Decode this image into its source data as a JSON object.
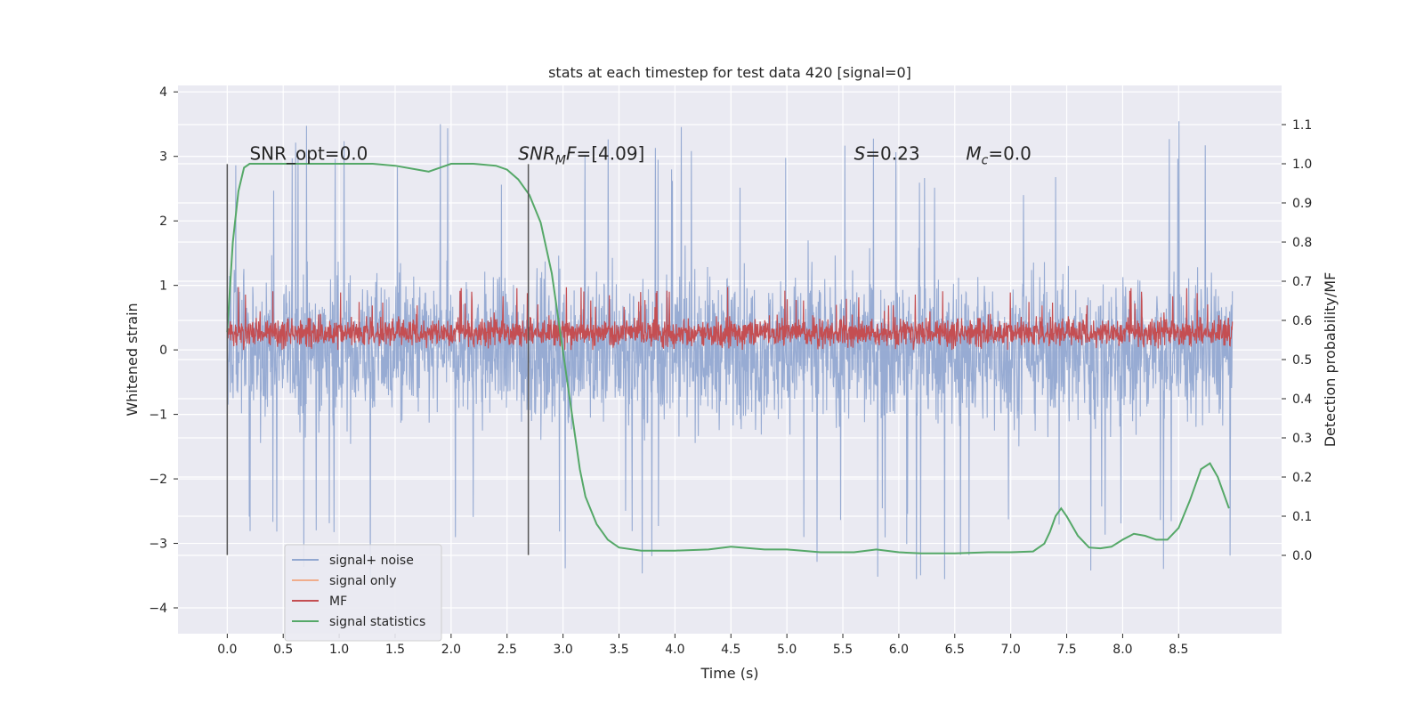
{
  "chart_data": {
    "type": "line",
    "title": "stats at each timestep for test data 420 [signal=0]",
    "xlabel": "Time (s)",
    "ylabel": "Whitened strain",
    "ylabel_right": "Detection probability/MF",
    "xlim": [
      -0.44,
      9.42
    ],
    "ylim": [
      -4.4,
      4.1
    ],
    "ylim_right": [
      -0.2,
      1.2
    ],
    "x_ticks": [
      "0.0",
      "0.5",
      "1.0",
      "1.5",
      "2.0",
      "2.5",
      "3.0",
      "3.5",
      "4.0",
      "4.5",
      "5.0",
      "5.5",
      "6.0",
      "6.5",
      "7.0",
      "7.5",
      "8.0",
      "8.5"
    ],
    "y_ticks": [
      "−4",
      "−3",
      "−2",
      "−1",
      "0",
      "1",
      "2",
      "3",
      "4"
    ],
    "y_ticks_right": [
      "0.0",
      "0.1",
      "0.2",
      "0.3",
      "0.4",
      "0.5",
      "0.6",
      "0.7",
      "0.8",
      "0.9",
      "1.0",
      "1.1"
    ],
    "grid": true,
    "legend_position": "lower-left",
    "annotations": [
      {
        "text": "SNR_opt=0.0",
        "x": 0.2,
        "y": 2.95
      },
      {
        "text": "SNR_MF=[4.09]",
        "x": 2.6,
        "y": 2.95
      },
      {
        "text": "S=0.23",
        "x": 5.6,
        "y": 2.95
      },
      {
        "text": "M_c=0.0",
        "x": 6.6,
        "y": 2.95
      }
    ],
    "vlines": [
      0.0,
      2.69
    ],
    "vline_range": [
      -3.18,
      2.88
    ],
    "series": [
      {
        "name": "signal+ noise",
        "color": "#92a8d1",
        "axis": "left",
        "style": "noise",
        "x_range": [
          0.0,
          8.98
        ],
        "amplitude": 1.7,
        "peak_max": 3.7,
        "peak_min": -4.0
      },
      {
        "name": "signal only",
        "color": "#f0ad8c",
        "axis": "left",
        "style": "flat",
        "value": 0.0
      },
      {
        "name": "MF",
        "color": "#c44e52",
        "axis": "left",
        "style": "noise",
        "x_range": [
          0.0,
          8.98
        ],
        "center": 0.25,
        "amplitude": 0.25,
        "peak_max": 0.98,
        "peak_min": 0.0
      },
      {
        "name": "signal statistics",
        "color": "#55a868",
        "axis": "right",
        "x": [
          0.0,
          0.05,
          0.1,
          0.15,
          0.2,
          0.3,
          0.5,
          0.8,
          1.0,
          1.3,
          1.5,
          1.7,
          1.8,
          1.9,
          2.0,
          2.2,
          2.4,
          2.5,
          2.6,
          2.7,
          2.8,
          2.9,
          3.0,
          3.05,
          3.1,
          3.15,
          3.2,
          3.3,
          3.4,
          3.5,
          3.7,
          4.0,
          4.3,
          4.5,
          4.8,
          5.0,
          5.3,
          5.6,
          5.8,
          6.0,
          6.2,
          6.5,
          6.8,
          7.0,
          7.2,
          7.3,
          7.35,
          7.4,
          7.45,
          7.5,
          7.6,
          7.7,
          7.8,
          7.9,
          8.0,
          8.1,
          8.2,
          8.3,
          8.4,
          8.5,
          8.6,
          8.7,
          8.78,
          8.85,
          8.95
        ],
        "y": [
          0.57,
          0.8,
          0.93,
          0.99,
          1.0,
          1.0,
          1.0,
          1.0,
          1.0,
          1.0,
          0.995,
          0.985,
          0.98,
          0.99,
          1.0,
          1.0,
          0.995,
          0.985,
          0.96,
          0.92,
          0.85,
          0.72,
          0.52,
          0.42,
          0.32,
          0.22,
          0.15,
          0.08,
          0.04,
          0.02,
          0.012,
          0.012,
          0.015,
          0.022,
          0.015,
          0.015,
          0.008,
          0.008,
          0.015,
          0.008,
          0.005,
          0.005,
          0.008,
          0.008,
          0.01,
          0.03,
          0.06,
          0.1,
          0.12,
          0.1,
          0.05,
          0.02,
          0.018,
          0.022,
          0.04,
          0.055,
          0.05,
          0.04,
          0.04,
          0.07,
          0.14,
          0.22,
          0.235,
          0.2,
          0.12
        ]
      }
    ]
  }
}
